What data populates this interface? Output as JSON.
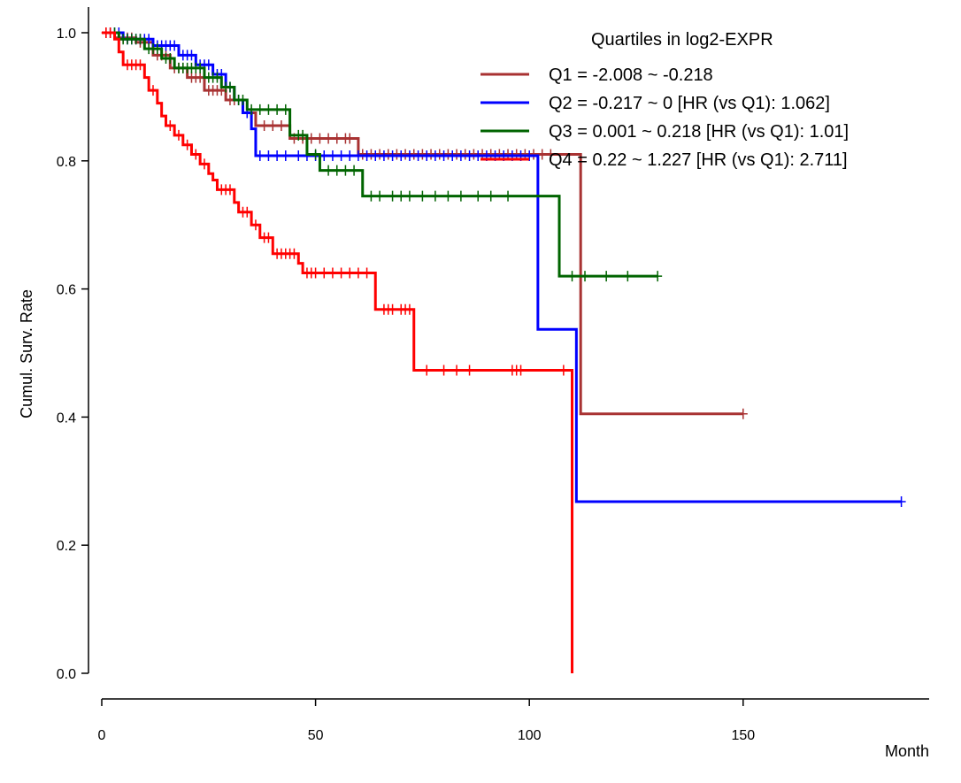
{
  "chart_data": {
    "type": "line",
    "subtype": "kaplan-meier-step",
    "xlabel": "Month",
    "ylabel": "Cumul. Surv. Rate",
    "xlim": [
      0,
      190
    ],
    "ylim": [
      0,
      1.0
    ],
    "x_ticks": [
      "0",
      "50",
      "100",
      "150"
    ],
    "y_ticks": [
      "0.0",
      "0.2",
      "0.4",
      "0.6",
      "0.8",
      "1.0"
    ],
    "grid": false,
    "legend": {
      "title": "Quartiles in log2-EXPR",
      "position": "top-right"
    },
    "series": [
      {
        "name": "Q1 = -2.008 ~ -0.218",
        "color": "#a83232",
        "steps": [
          [
            0,
            1.0
          ],
          [
            3,
            0.992
          ],
          [
            8,
            0.985
          ],
          [
            12,
            0.965
          ],
          [
            16,
            0.945
          ],
          [
            20,
            0.93
          ],
          [
            24,
            0.91
          ],
          [
            29,
            0.895
          ],
          [
            33,
            0.875
          ],
          [
            36,
            0.855
          ],
          [
            44,
            0.835
          ],
          [
            60,
            0.81
          ],
          [
            112,
            0.405
          ],
          [
            150,
            0.405
          ]
        ],
        "censor": [
          1,
          2,
          4,
          5,
          6,
          7,
          9,
          10,
          11,
          13,
          14,
          15,
          17,
          18,
          19,
          21,
          22,
          23,
          25,
          26,
          27,
          28,
          30,
          31,
          32,
          34,
          35,
          38,
          40,
          42,
          45,
          47,
          49,
          51,
          53,
          55,
          57,
          58,
          61,
          63,
          65,
          67,
          69,
          71,
          73,
          75,
          77,
          79,
          81,
          83,
          85,
          87,
          89,
          91,
          93,
          95,
          97,
          99,
          101,
          103,
          105,
          150
        ]
      },
      {
        "name": "Q2 = -0.217 ~ 0 [HR (vs Q1): 1.062]",
        "color": "#0000ff",
        "steps": [
          [
            0,
            1.0
          ],
          [
            5,
            0.99
          ],
          [
            12,
            0.98
          ],
          [
            18,
            0.965
          ],
          [
            22,
            0.95
          ],
          [
            26,
            0.935
          ],
          [
            29,
            0.915
          ],
          [
            31,
            0.895
          ],
          [
            33,
            0.875
          ],
          [
            35,
            0.85
          ],
          [
            36,
            0.808
          ],
          [
            102,
            0.808
          ],
          [
            102,
            0.537
          ],
          [
            111,
            0.537
          ],
          [
            111,
            0.268
          ],
          [
            187,
            0.268
          ]
        ],
        "censor": [
          2,
          3,
          4,
          6,
          7,
          8,
          9,
          10,
          11,
          13,
          14,
          15,
          16,
          17,
          19,
          20,
          21,
          23,
          24,
          25,
          27,
          28,
          30,
          32,
          34,
          37,
          39,
          41,
          43,
          46,
          48,
          50,
          52,
          54,
          56,
          58,
          60,
          62,
          64,
          66,
          68,
          70,
          72,
          74,
          76,
          78,
          80,
          82,
          84,
          86,
          88,
          90,
          92,
          94,
          96,
          98,
          100,
          187
        ]
      },
      {
        "name": "Q3 = 0.001 ~ 0.218 [HR (vs Q1): 1.01]",
        "color": "#006400",
        "steps": [
          [
            0,
            1.0
          ],
          [
            4,
            0.99
          ],
          [
            10,
            0.975
          ],
          [
            14,
            0.96
          ],
          [
            17,
            0.945
          ],
          [
            24,
            0.93
          ],
          [
            28,
            0.915
          ],
          [
            31,
            0.895
          ],
          [
            34,
            0.88
          ],
          [
            44,
            0.84
          ],
          [
            48,
            0.81
          ],
          [
            51,
            0.785
          ],
          [
            61,
            0.745
          ],
          [
            107,
            0.62
          ],
          [
            130,
            0.62
          ]
        ],
        "censor": [
          3,
          5,
          6,
          7,
          8,
          9,
          11,
          12,
          13,
          15,
          16,
          18,
          19,
          20,
          21,
          22,
          23,
          25,
          26,
          27,
          29,
          30,
          32,
          33,
          35,
          37,
          39,
          41,
          43,
          46,
          47,
          50,
          53,
          55,
          57,
          59,
          63,
          65,
          68,
          70,
          72,
          75,
          78,
          81,
          84,
          88,
          91,
          95,
          110,
          113,
          118,
          123,
          130
        ]
      },
      {
        "name": "Q4 = 0.22 ~ 1.227 [HR (vs Q1): 2.711]",
        "color": "#ff0000",
        "steps": [
          [
            0,
            1.0
          ],
          [
            3,
            0.99
          ],
          [
            4,
            0.97
          ],
          [
            5,
            0.95
          ],
          [
            10,
            0.93
          ],
          [
            11,
            0.91
          ],
          [
            13,
            0.89
          ],
          [
            14,
            0.87
          ],
          [
            15,
            0.855
          ],
          [
            17,
            0.84
          ],
          [
            19,
            0.825
          ],
          [
            21,
            0.81
          ],
          [
            23,
            0.795
          ],
          [
            25,
            0.78
          ],
          [
            26,
            0.77
          ],
          [
            27,
            0.755
          ],
          [
            31,
            0.735
          ],
          [
            32,
            0.72
          ],
          [
            35,
            0.7
          ],
          [
            37,
            0.68
          ],
          [
            40,
            0.655
          ],
          [
            46,
            0.64
          ],
          [
            47,
            0.625
          ],
          [
            64,
            0.568
          ],
          [
            73,
            0.473
          ],
          [
            110,
            0.0
          ]
        ],
        "censor": [
          1,
          2,
          6,
          7,
          8,
          9,
          12,
          16,
          18,
          20,
          22,
          24,
          28,
          29,
          30,
          33,
          34,
          36,
          38,
          39,
          41,
          42,
          43,
          44,
          45,
          48,
          49,
          50,
          52,
          54,
          56,
          58,
          60,
          62,
          66,
          67,
          68,
          70,
          71,
          72,
          76,
          80,
          83,
          86,
          96,
          97,
          98,
          108
        ]
      }
    ]
  }
}
